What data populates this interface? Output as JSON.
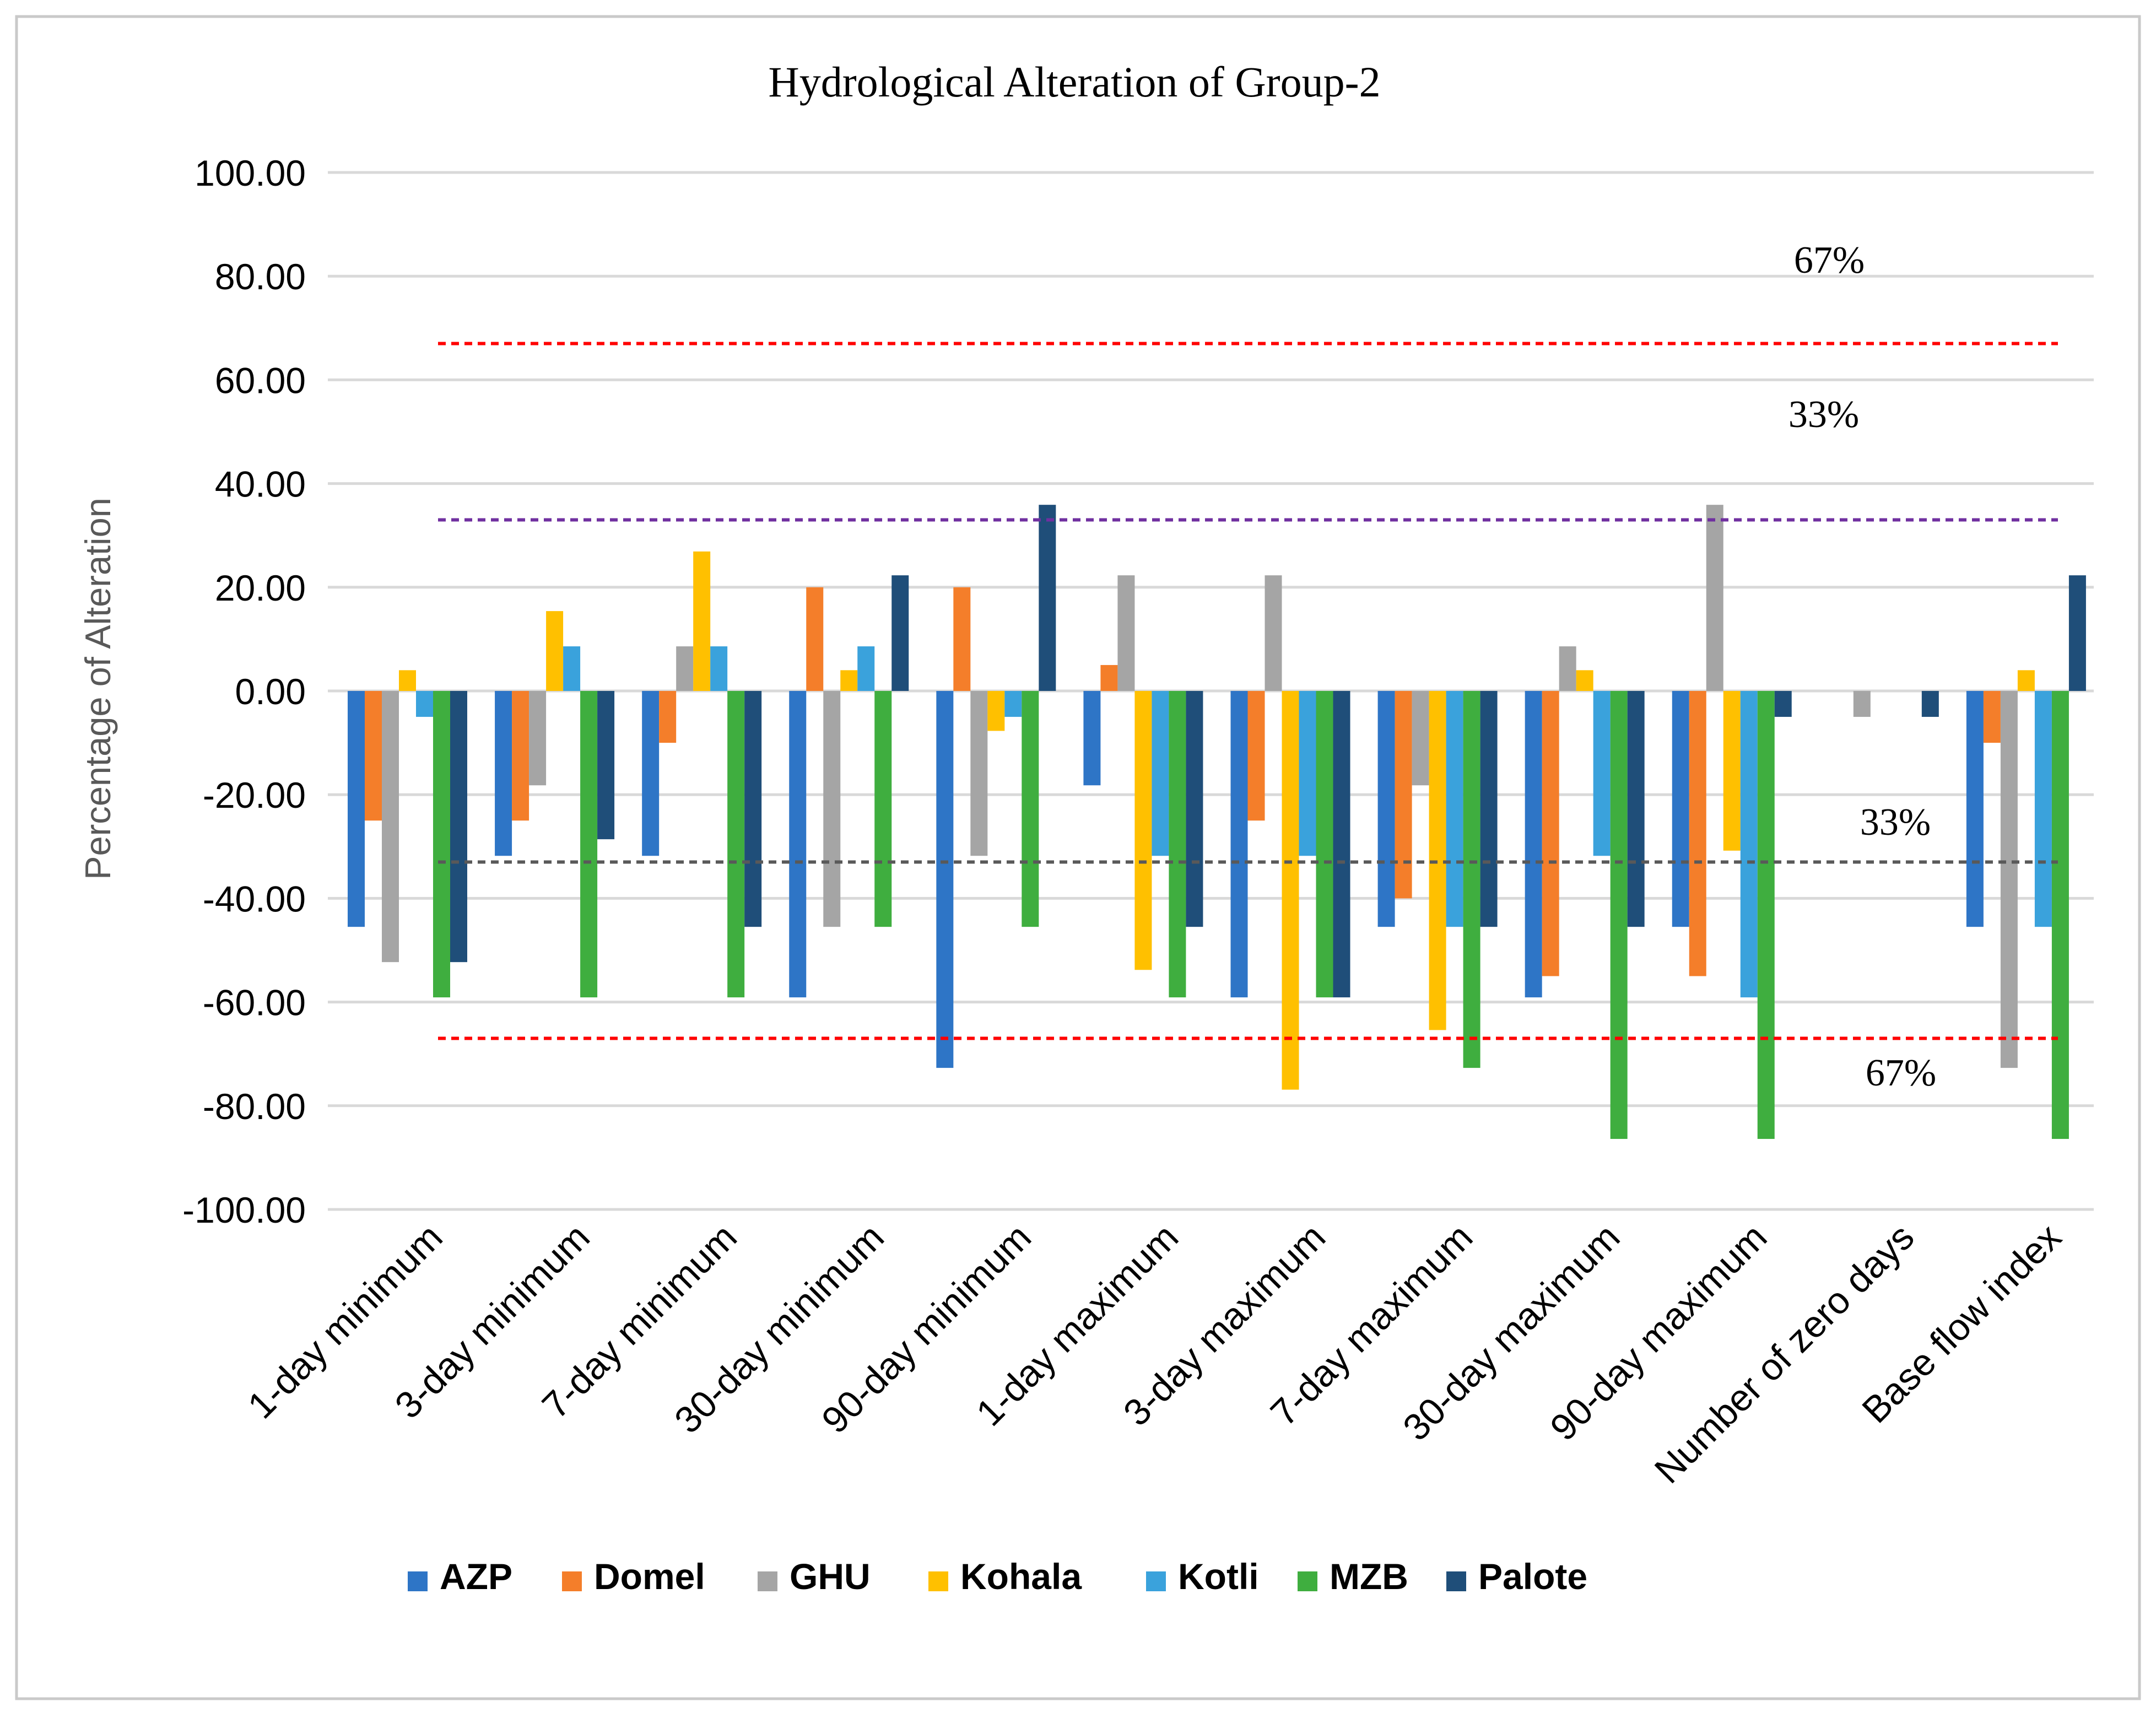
{
  "chart_data": {
    "type": "bar",
    "title": "Hydrological Alteration of Group-2",
    "xlabel": "",
    "ylabel": "Percentage of Alteration",
    "ylim": [
      -100,
      100
    ],
    "yticks": [
      "100.00",
      "80.00",
      "60.00",
      "40.00",
      "20.00",
      "0.00",
      "-20.00",
      "-40.00",
      "-60.00",
      "-80.00",
      "-100.00"
    ],
    "ytick_values": [
      100,
      80,
      60,
      40,
      20,
      0,
      -20,
      -40,
      -60,
      -80,
      -100
    ],
    "grid": true,
    "legend_position": "bottom",
    "categories": [
      "1-day minimum",
      "3-day minimum",
      "7-day minimum",
      "30-day minimum",
      "90-day minimum",
      "1-day maximum",
      "3-day maximum",
      "7-day maximum",
      "30-day maximum",
      "90-day maximum",
      "Number of zero days",
      "Base flow index"
    ],
    "series": [
      {
        "name": "AZP",
        "color": "#2e75c6",
        "values": [
          -45.5,
          -31.8,
          -31.8,
          -59.1,
          -72.7,
          -18.2,
          -59.1,
          -45.5,
          -59.1,
          -45.5,
          0,
          -45.5
        ]
      },
      {
        "name": "Domel",
        "color": "#f47e2a",
        "values": [
          -25.0,
          -25.0,
          -10.0,
          20.0,
          20.0,
          5.0,
          -25.0,
          -40.0,
          -55.0,
          -55.0,
          0,
          -10.0
        ]
      },
      {
        "name": "GHU",
        "color": "#a5a5a5",
        "values": [
          -52.3,
          -18.2,
          8.6,
          -45.5,
          -31.8,
          22.3,
          22.3,
          -18.2,
          8.6,
          35.9,
          -5.0,
          -72.7
        ]
      },
      {
        "name": "Kohala",
        "color": "#ffc000",
        "values": [
          4.0,
          15.4,
          26.9,
          4.0,
          -7.7,
          -53.8,
          -76.9,
          -65.4,
          4.0,
          -30.8,
          0,
          4.0
        ]
      },
      {
        "name": "Kotli",
        "color": "#3aa2dc",
        "values": [
          -5.0,
          8.6,
          8.6,
          8.6,
          -5.0,
          -31.8,
          -31.8,
          -45.5,
          -31.8,
          -59.1,
          0,
          -45.5
        ]
      },
      {
        "name": "MZB",
        "color": "#3fae3f",
        "values": [
          -59.1,
          -59.1,
          -59.1,
          -45.5,
          -45.5,
          -59.1,
          -59.1,
          -72.7,
          -86.4,
          -86.4,
          0,
          -86.4
        ]
      },
      {
        "name": "Palote",
        "color": "#1f4e79",
        "values": [
          -52.3,
          -28.6,
          -45.5,
          22.3,
          35.9,
          -45.5,
          -59.1,
          -45.5,
          -45.5,
          -5.0,
          -5.0,
          22.3
        ]
      }
    ],
    "reference_lines": [
      {
        "value": 67,
        "color": "#ff0000",
        "label": "67%"
      },
      {
        "value": 33,
        "color": "#7030a0",
        "label": "33%"
      },
      {
        "value": -33,
        "color": "#595959",
        "label": "33%"
      },
      {
        "value": -67,
        "color": "#ff0000",
        "label": "67%"
      }
    ]
  }
}
